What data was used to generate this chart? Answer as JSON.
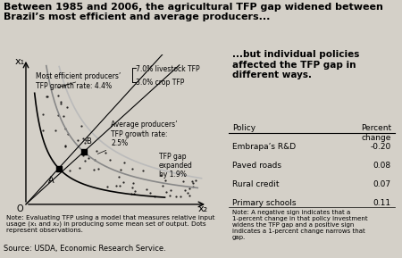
{
  "title": "Between 1985 and 2006, the agricultural TFP gap widened between\nBrazil’s most efficient and average producers...",
  "title_bg": "#d4d0c8",
  "left_bg": "#ffffff",
  "right_bg": "#e8e4d8",
  "right_title": "...but individual policies\naffected the TFP gap in\ndifferent ways.",
  "policy_header": [
    "Policy",
    "Percent\nchange"
  ],
  "policies": [
    [
      "Embrapa’s R&D",
      "-0.20"
    ],
    [
      "Paved roads",
      "0.08"
    ],
    [
      "Rural credit",
      "0.07"
    ],
    [
      "Primary schools",
      "0.11"
    ]
  ],
  "note_right": "Note: A negative sign indicates that a\n1-percent change in that policy investment\nwidens the TFP gap and a positive sign\nindicates a 1-percent change narrows that\ngap.",
  "note_left": "Note: Evaluating TFP using a model that measures relative input\nusage (x₁ and x₂) in producing some mean set of output. Dots\nrepresent observations.",
  "source": "Source: USDA, Economic Research Service.",
  "annotation_efficient": "Most efficient producers’\nTFP growth rate: 4.4%",
  "annotation_avg": "Average producers’\nTFP growth rate:\n2.5%",
  "annotation_livestock": "7.0% livestock TFP",
  "annotation_crop": "3.0% crop TFP",
  "annotation_gap": "TFP gap\nexpanded\nby 1.9%"
}
